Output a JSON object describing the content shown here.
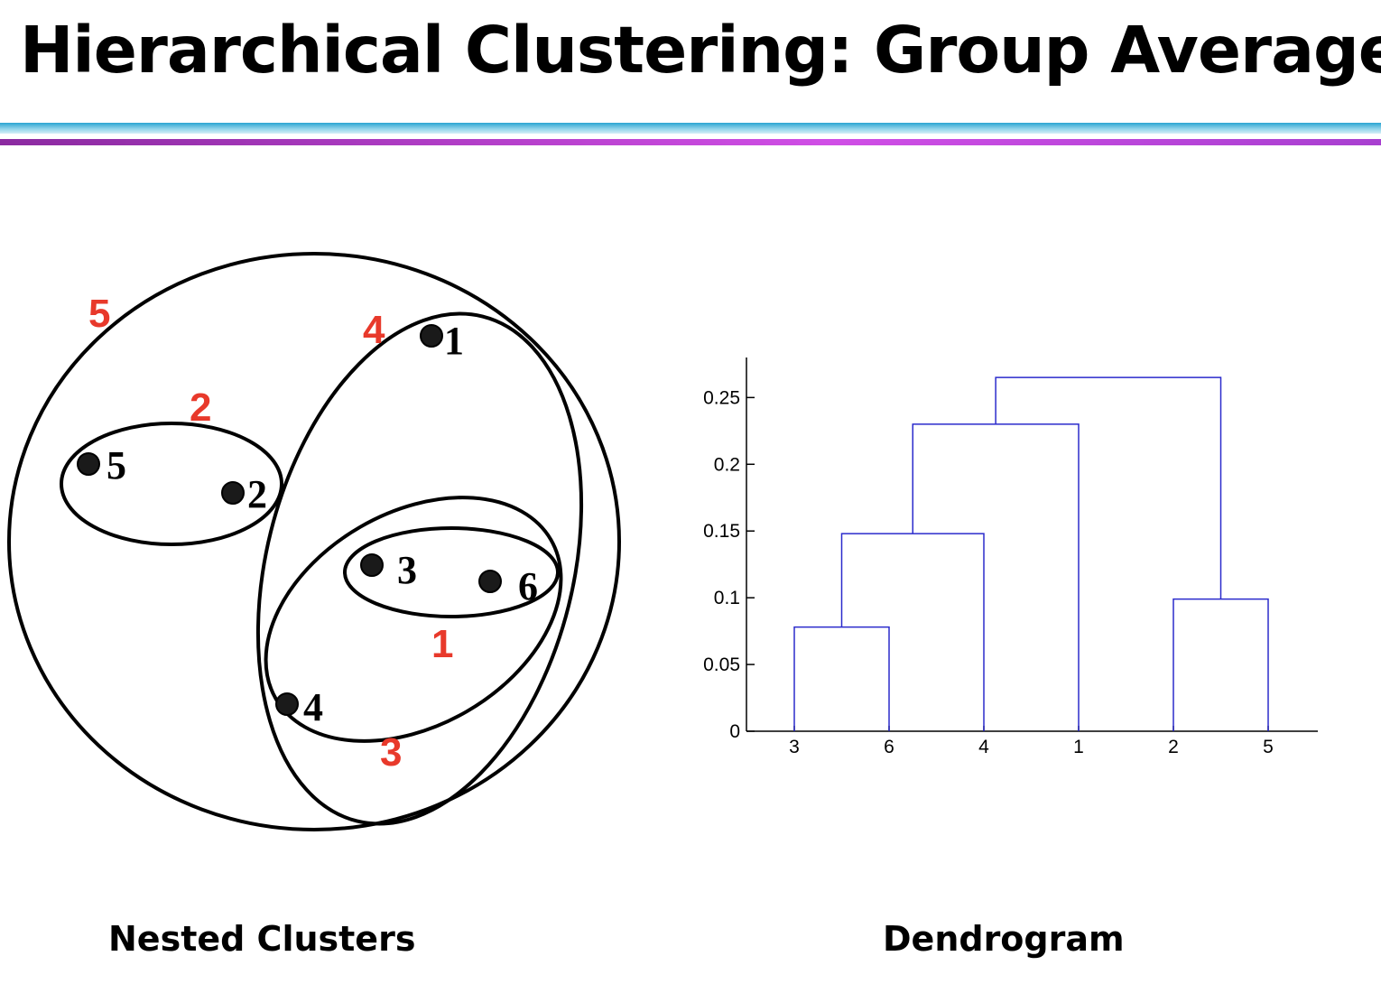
{
  "title": "Hierarchical Clustering: Group Average",
  "nested_clusters": {
    "caption": "Nested Clusters",
    "points": [
      {
        "id": "1",
        "label": "1"
      },
      {
        "id": "2",
        "label": "2"
      },
      {
        "id": "3",
        "label": "3"
      },
      {
        "id": "4",
        "label": "4"
      },
      {
        "id": "5",
        "label": "5"
      },
      {
        "id": "6",
        "label": "6"
      }
    ],
    "cluster_labels": [
      "1",
      "2",
      "3",
      "4",
      "5"
    ],
    "colors": {
      "cluster_label": "#e8392b",
      "point": "#1a1a1a",
      "outline": "#000000"
    }
  },
  "chart_data": {
    "type": "dendrogram",
    "caption": "Dendrogram",
    "leaf_order": [
      "3",
      "6",
      "4",
      "1",
      "2",
      "5"
    ],
    "y_ticks": [
      "0",
      "0.05",
      "0.1",
      "0.15",
      "0.2",
      "0.25"
    ],
    "ylim": [
      0,
      0.28
    ],
    "merges": [
      {
        "left": "3",
        "right": "6",
        "height": 0.078
      },
      {
        "left": "{3,6}",
        "right": "4",
        "height": 0.148
      },
      {
        "left": "2",
        "right": "5",
        "height": 0.099
      },
      {
        "left": "{3,6,4}",
        "right": "1",
        "height": 0.23
      },
      {
        "left": "{3,6,4,1}",
        "right": "{2,5}",
        "height": 0.265
      }
    ],
    "line_color": "#2b2bcc"
  }
}
